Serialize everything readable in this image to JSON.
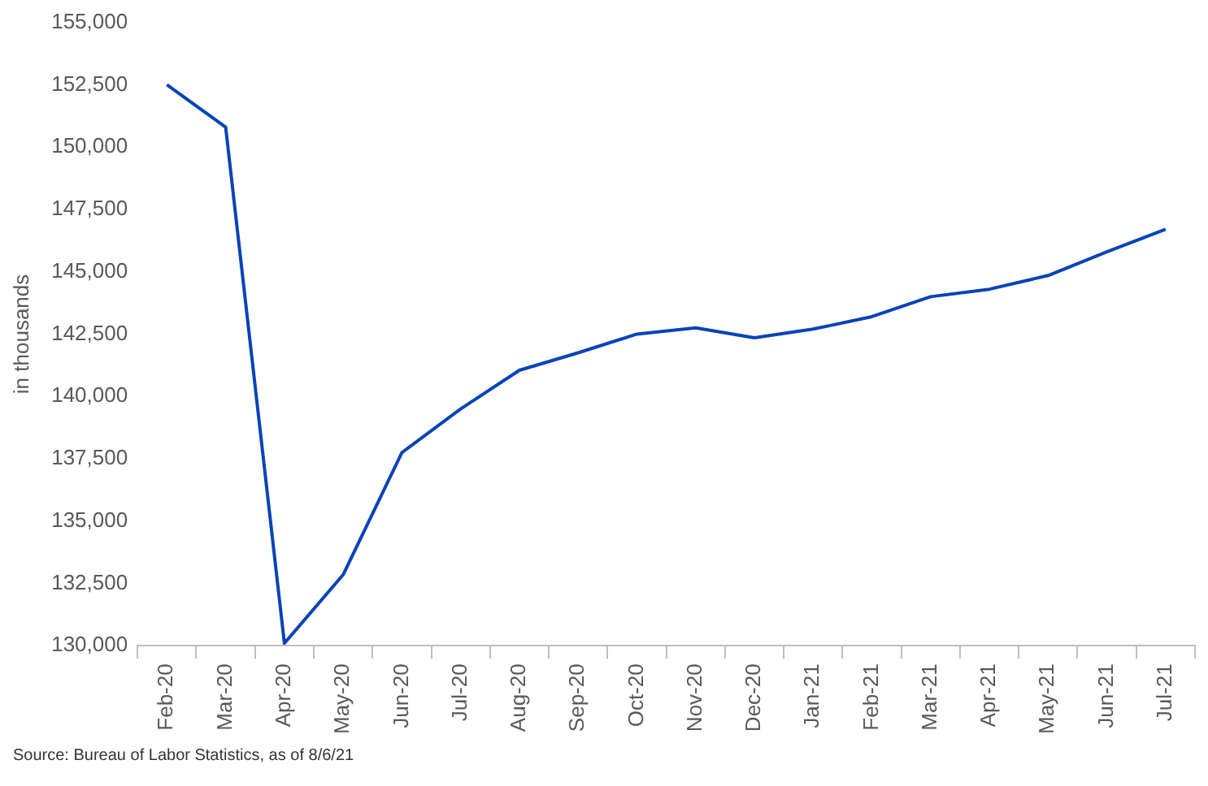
{
  "chart_data": {
    "type": "line",
    "ylabel": "in thousands",
    "categories": [
      "Feb-20",
      "Mar-20",
      "Apr-20",
      "May-20",
      "Jun-20",
      "Jul-20",
      "Aug-20",
      "Sep-20",
      "Oct-20",
      "Nov-20",
      "Dec-20",
      "Jan-21",
      "Feb-21",
      "Mar-21",
      "Apr-21",
      "May-21",
      "Jun-21",
      "Jul-21"
    ],
    "series": [
      {
        "color": "#0a43b8",
        "values": [
          152500,
          150800,
          130100,
          132850,
          137750,
          139500,
          141050,
          141750,
          142500,
          142750,
          142350,
          142700,
          143200,
          144000,
          144300,
          144850,
          145800,
          146700
        ]
      }
    ],
    "ylim": [
      130000,
      155000
    ],
    "yticks": [
      {
        "value": 130000,
        "label": "130,000"
      },
      {
        "value": 132500,
        "label": "132,500"
      },
      {
        "value": 135000,
        "label": "135,000"
      },
      {
        "value": 137500,
        "label": "137,500"
      },
      {
        "value": 140000,
        "label": "140,000"
      },
      {
        "value": 142500,
        "label": "142,500"
      },
      {
        "value": 145000,
        "label": "145,000"
      },
      {
        "value": 147500,
        "label": "147,500"
      },
      {
        "value": 150000,
        "label": "150,000"
      },
      {
        "value": 152500,
        "label": "152,500"
      },
      {
        "value": 155000,
        "label": "155,000"
      }
    ],
    "grid": false,
    "legend": false,
    "marker": "none",
    "line_style": "solid",
    "annotations": [
      "Source: Bureau of Labor Statistics, as of 8/6/21"
    ]
  }
}
